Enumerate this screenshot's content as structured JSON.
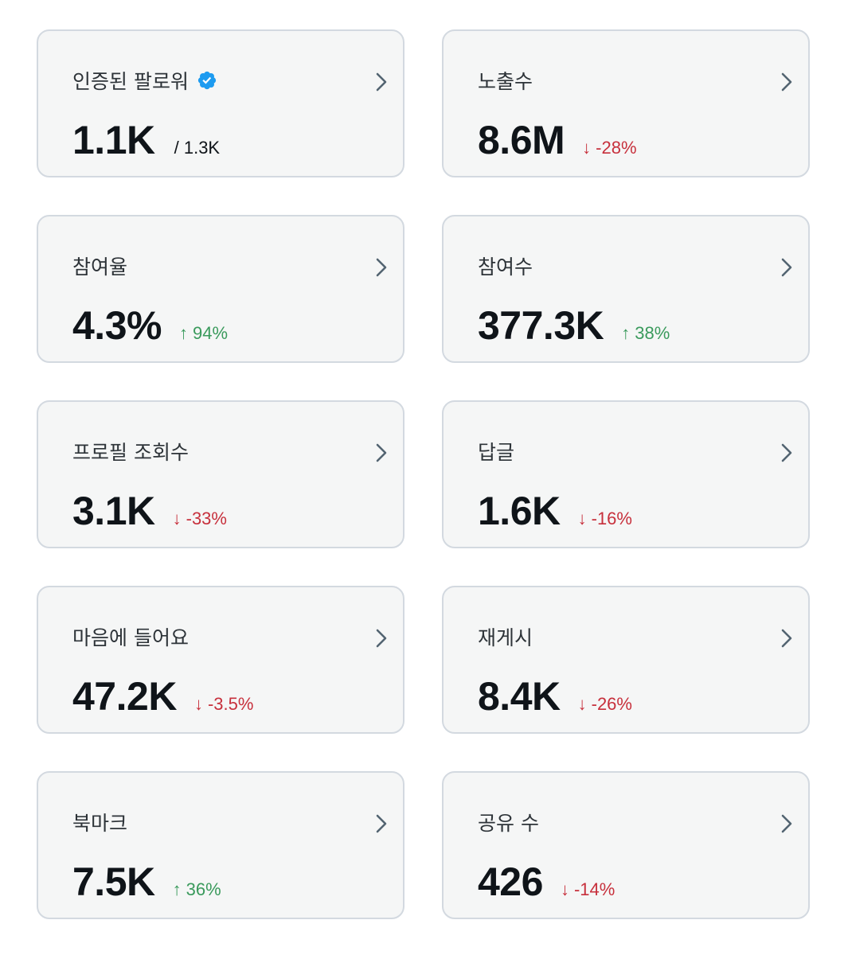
{
  "colors": {
    "card_background": "#f5f6f6",
    "card_border": "#d3d9e0",
    "value_text": "#0f1419",
    "label_text": "#2d3338",
    "negative": "#c7303c",
    "positive": "#3a9a5c",
    "chevron": "#536471",
    "verified_badge": "#1d9bf0"
  },
  "metrics": [
    {
      "label": "인증된 팔로워",
      "value": "1.1K",
      "total": "/ 1.3K",
      "icon": "verified-badge-icon"
    },
    {
      "label": "노출수",
      "value": "8.6M",
      "delta": "-28%",
      "direction": "down"
    },
    {
      "label": "참여율",
      "value": "4.3%",
      "delta": "94%",
      "direction": "up"
    },
    {
      "label": "참여수",
      "value": "377.3K",
      "delta": "38%",
      "direction": "up"
    },
    {
      "label": "프로필 조회수",
      "value": "3.1K",
      "delta": "-33%",
      "direction": "down"
    },
    {
      "label": "답글",
      "value": "1.6K",
      "delta": "-16%",
      "direction": "down"
    },
    {
      "label": "마음에 들어요",
      "value": "47.2K",
      "delta": "-3.5%",
      "direction": "down"
    },
    {
      "label": "재게시",
      "value": "8.4K",
      "delta": "-26%",
      "direction": "down"
    },
    {
      "label": "북마크",
      "value": "7.5K",
      "delta": "36%",
      "direction": "up"
    },
    {
      "label": "공유 수",
      "value": "426",
      "delta": "-14%",
      "direction": "down"
    }
  ],
  "arrows": {
    "up": "↑",
    "down": "↓"
  }
}
